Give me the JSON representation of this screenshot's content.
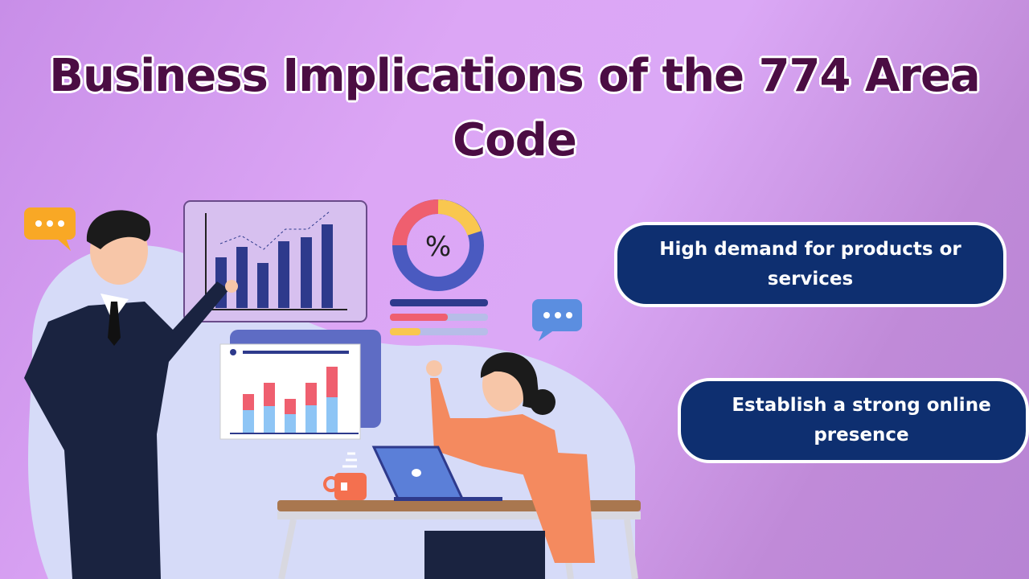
{
  "title": "Business Implications of the 774 Area Code",
  "points": [
    {
      "text": "High demand for products or services"
    },
    {
      "text": "Establish a strong online presence"
    }
  ],
  "illustration": {
    "percent_symbol": "%",
    "colors": {
      "title": "#4b0d43",
      "pill": "#0e2f70",
      "bars": "#2e3a8c"
    }
  }
}
